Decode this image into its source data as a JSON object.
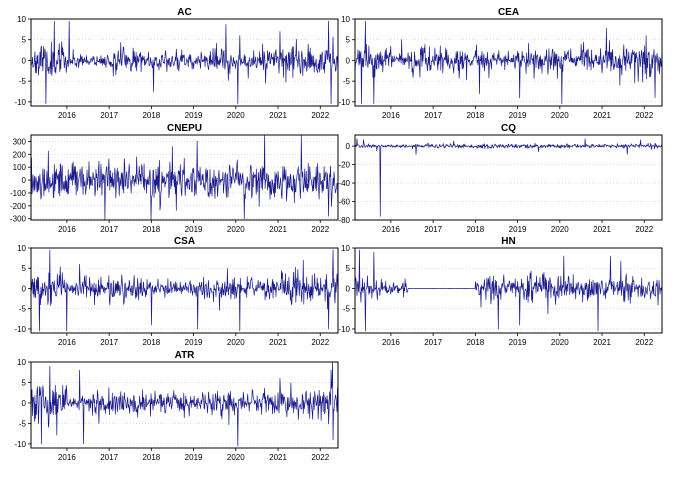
{
  "chart_data": [
    {
      "type": "line",
      "title": "AC",
      "ylim": [
        -11,
        10
      ],
      "yticks": [
        -10,
        -5,
        0,
        5,
        10
      ],
      "xlim": [
        2015.15,
        2022.42
      ],
      "xticks": [
        2016,
        2017,
        2018,
        2019,
        2020,
        2021,
        2022
      ],
      "xtick_labels": [
        "2016",
        "2017",
        "2018",
        "2019",
        "2020",
        "2021",
        "2022"
      ],
      "color": "#1a1a8c",
      "vol_regimes": [
        [
          2015.15,
          2.6
        ],
        [
          2016.0,
          1.9
        ],
        [
          2017.0,
          0.75
        ],
        [
          2017.8,
          1.5
        ],
        [
          2019.3,
          1.1
        ],
        [
          2019.9,
          1.6
        ],
        [
          2020.5,
          1.1
        ],
        [
          2021.0,
          1.5
        ],
        [
          2022.42,
          1.8
        ]
      ],
      "spikes": [
        [
          2015.5,
          -10.5
        ],
        [
          2015.7,
          9.5
        ],
        [
          2016.05,
          9.5
        ],
        [
          2018.05,
          -7.5
        ],
        [
          2020.05,
          -10.5
        ],
        [
          2020.1,
          6
        ],
        [
          2021.05,
          7
        ],
        [
          2022.2,
          9.5
        ],
        [
          2022.25,
          -10.5
        ]
      ],
      "seed": 11
    },
    {
      "type": "line",
      "title": "CEA",
      "ylim": [
        -11,
        10
      ],
      "yticks": [
        -10,
        -5,
        0,
        5,
        10
      ],
      "xlim": [
        2015.15,
        2022.42
      ],
      "xticks": [
        2016,
        2017,
        2018,
        2019,
        2020,
        2021,
        2022
      ],
      "xtick_labels": [
        "2016",
        "2017",
        "2018",
        "2019",
        "2020",
        "2021",
        "2022"
      ],
      "color": "#1a1a8c",
      "vol_regimes": [
        [
          2015.15,
          3.2
        ],
        [
          2016.0,
          1.6
        ],
        [
          2016.4,
          0.8
        ],
        [
          2017.8,
          1.6
        ],
        [
          2019.2,
          1.0
        ],
        [
          2019.9,
          1.7
        ],
        [
          2020.5,
          1.2
        ],
        [
          2021.0,
          1.6
        ],
        [
          2022.42,
          2.0
        ]
      ],
      "spikes": [
        [
          2015.3,
          -10.5
        ],
        [
          2015.4,
          9.5
        ],
        [
          2015.6,
          -10.5
        ],
        [
          2016.25,
          5
        ],
        [
          2018.1,
          -8
        ],
        [
          2019.05,
          -9
        ],
        [
          2020.05,
          -10.5
        ],
        [
          2022.05,
          6
        ],
        [
          2022.25,
          -9
        ]
      ],
      "seed": 23
    },
    {
      "type": "line",
      "title": "CNEPU",
      "ylim": [
        -310,
        350
      ],
      "yticks": [
        -300,
        -200,
        -100,
        0,
        100,
        200,
        300
      ],
      "xlim": [
        2015.15,
        2022.42
      ],
      "xticks": [
        2016,
        2017,
        2018,
        2019,
        2020,
        2021,
        2022
      ],
      "xtick_labels": [
        "2016",
        "2017",
        "2018",
        "2019",
        "2020",
        "2021",
        "2022"
      ],
      "color": "#1a1a8c",
      "vol_regimes": [
        [
          2015.15,
          55
        ],
        [
          2018.0,
          70
        ],
        [
          2020.0,
          75
        ],
        [
          2022.42,
          70
        ]
      ],
      "spikes": [
        [
          2018.5,
          260
        ],
        [
          2020.2,
          -300
        ],
        [
          2021.55,
          350
        ],
        [
          2022.2,
          -280
        ]
      ],
      "seed": 37
    },
    {
      "type": "line",
      "title": "CQ",
      "ylim": [
        -80,
        12
      ],
      "yticks": [
        -80,
        -60,
        -40,
        -20,
        0
      ],
      "xlim": [
        2015.15,
        2022.42
      ],
      "xticks": [
        2016,
        2017,
        2018,
        2019,
        2020,
        2021,
        2022
      ],
      "xtick_labels": [
        "2016",
        "2017",
        "2018",
        "2019",
        "2020",
        "2021",
        "2022"
      ],
      "color": "#1a1a8c",
      "vol_regimes": [
        [
          2015.15,
          2.2
        ],
        [
          2015.6,
          1.2
        ],
        [
          2016.5,
          0.9
        ],
        [
          2022.42,
          1.2
        ]
      ],
      "spikes": [
        [
          2015.2,
          8
        ],
        [
          2015.35,
          7
        ],
        [
          2015.75,
          -76
        ],
        [
          2016.6,
          -9
        ],
        [
          2019.5,
          -6
        ],
        [
          2020.6,
          8
        ],
        [
          2021.6,
          -9
        ]
      ],
      "seed": 41
    },
    {
      "type": "line",
      "title": "CSA",
      "ylim": [
        -11,
        10
      ],
      "yticks": [
        -10,
        -5,
        0,
        5,
        10
      ],
      "xlim": [
        2015.15,
        2022.42
      ],
      "xticks": [
        2016,
        2017,
        2018,
        2019,
        2020,
        2021,
        2022
      ],
      "xtick_labels": [
        "2016",
        "2017",
        "2018",
        "2019",
        "2020",
        "2021",
        "2022"
      ],
      "color": "#1a1a8c",
      "vol_regimes": [
        [
          2015.15,
          3.2
        ],
        [
          2016.0,
          2.0
        ],
        [
          2016.4,
          0.9
        ],
        [
          2017.8,
          1.6
        ],
        [
          2019.2,
          1.0
        ],
        [
          2019.9,
          1.8
        ],
        [
          2020.5,
          1.2
        ],
        [
          2021.0,
          1.6
        ],
        [
          2022.42,
          2.0
        ]
      ],
      "spikes": [
        [
          2015.35,
          -10.5
        ],
        [
          2015.6,
          9.5
        ],
        [
          2016.0,
          -10.5
        ],
        [
          2016.3,
          6
        ],
        [
          2018.0,
          -9
        ],
        [
          2019.1,
          -10
        ],
        [
          2020.1,
          -10.5
        ],
        [
          2021.6,
          7
        ],
        [
          2022.2,
          -10
        ],
        [
          2022.3,
          9.5
        ]
      ],
      "seed": 53
    },
    {
      "type": "line",
      "title": "HN",
      "ylim": [
        -11,
        10
      ],
      "yticks": [
        -10,
        -5,
        0,
        5,
        10
      ],
      "xlim": [
        2015.15,
        2022.42
      ],
      "xticks": [
        2016,
        2017,
        2018,
        2019,
        2020,
        2021,
        2022
      ],
      "xtick_labels": [
        "2016",
        "2017",
        "2018",
        "2019",
        "2020",
        "2021",
        "2022"
      ],
      "color": "#1a1a8c",
      "vol_regimes": [
        [
          2015.15,
          3.4
        ],
        [
          2015.7,
          1.4
        ],
        [
          2016.4,
          0.9
        ],
        [
          2018.0,
          0.02
        ],
        [
          2018.5,
          1.6
        ],
        [
          2019.2,
          1.0
        ],
        [
          2019.9,
          1.9
        ],
        [
          2020.5,
          1.3
        ],
        [
          2021.0,
          1.8
        ],
        [
          2022.42,
          1.5
        ]
      ],
      "spikes": [
        [
          2015.25,
          9.5
        ],
        [
          2015.4,
          -10.5
        ],
        [
          2015.6,
          9
        ],
        [
          2018.55,
          -10
        ],
        [
          2019.05,
          -9
        ],
        [
          2020.1,
          8
        ],
        [
          2020.9,
          -10.5
        ],
        [
          2021.2,
          8
        ]
      ],
      "seed": 67
    },
    {
      "type": "line",
      "title": "ATR",
      "ylim": [
        -11,
        10
      ],
      "yticks": [
        -10,
        -5,
        0,
        5,
        10
      ],
      "xlim": [
        2015.15,
        2022.42
      ],
      "xticks": [
        2016,
        2017,
        2018,
        2019,
        2020,
        2021,
        2022
      ],
      "xtick_labels": [
        "2016",
        "2017",
        "2018",
        "2019",
        "2020",
        "2021",
        "2022"
      ],
      "color": "#1a1a8c",
      "vol_regimes": [
        [
          2015.15,
          3.0
        ],
        [
          2016.0,
          2.4
        ],
        [
          2016.6,
          0.7
        ],
        [
          2017.8,
          1.7
        ],
        [
          2019.2,
          1.3
        ],
        [
          2019.9,
          1.6
        ],
        [
          2020.5,
          1.4
        ],
        [
          2021.0,
          1.6
        ],
        [
          2022.42,
          2.0
        ]
      ],
      "spikes": [
        [
          2015.4,
          -10
        ],
        [
          2015.6,
          9
        ],
        [
          2016.3,
          8
        ],
        [
          2016.4,
          -10
        ],
        [
          2020.05,
          -10.5
        ],
        [
          2021.05,
          6
        ],
        [
          2022.25,
          8
        ],
        [
          2022.3,
          -9
        ]
      ],
      "seed": 79
    }
  ]
}
